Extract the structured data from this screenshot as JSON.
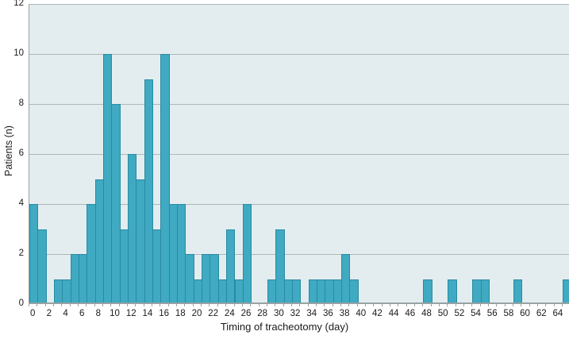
{
  "chart_data": {
    "type": "bar",
    "title": "",
    "xlabel": "Timing of tracheotomy (day)",
    "ylabel": "Patients (n)",
    "bin_width_days": 1,
    "day_start": 0,
    "values": [
      4,
      3,
      0,
      1,
      1,
      2,
      2,
      4,
      5,
      10,
      8,
      3,
      6,
      5,
      9,
      3,
      10,
      4,
      4,
      2,
      1,
      2,
      2,
      1,
      3,
      1,
      4,
      0,
      0,
      1,
      3,
      1,
      1,
      0,
      1,
      1,
      1,
      1,
      2,
      1,
      0,
      0,
      0,
      0,
      0,
      0,
      0,
      0,
      1,
      0,
      0,
      1,
      0,
      0,
      1,
      1,
      0,
      0,
      0,
      1,
      0,
      0,
      0,
      0,
      0,
      1
    ],
    "xtick_labels": [
      "0",
      "2",
      "4",
      "6",
      "8",
      "10",
      "12",
      "14",
      "16",
      "18",
      "20",
      "22",
      "24",
      "26",
      "28",
      "30",
      "32",
      "34",
      "36",
      "38",
      "40",
      "42",
      "44",
      "46",
      "48",
      "50",
      "52",
      "54",
      "56",
      "58",
      "60",
      "62",
      "64"
    ],
    "xtick_step_days": 2,
    "ytick_labels": [
      "0",
      "2",
      "4",
      "6",
      "8",
      "10",
      "12"
    ],
    "ylim": [
      0,
      12
    ],
    "grid": "horizontal",
    "legend": "none",
    "colors": {
      "bar_fill": "#3faac1",
      "bar_border": "#2a8aa3",
      "plot_background": "#e3edef",
      "gridline": "#adb8ba",
      "axis_line": "#97a2a4",
      "tick": "#97a2a4",
      "text": "#1a1a1a",
      "figure_background": "#ffffff"
    }
  }
}
